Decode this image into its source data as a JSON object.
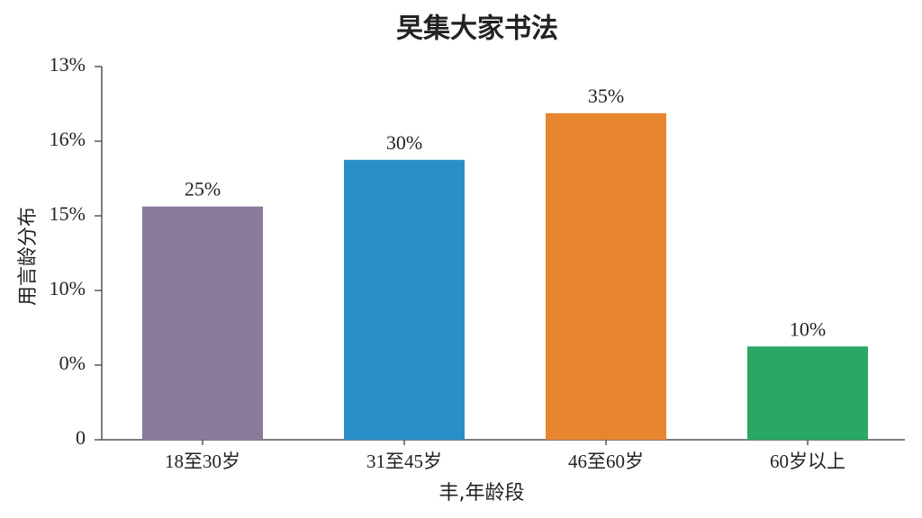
{
  "chart_data": {
    "type": "bar",
    "title": "旲集大家书法",
    "xlabel": "丰,年龄段",
    "ylabel": "用言龄分布",
    "categories": [
      "18至30岁",
      "31至45岁",
      "46至60岁",
      "60岁以上"
    ],
    "values": [
      25,
      30,
      35,
      10
    ],
    "value_labels": [
      "25%",
      "30%",
      "35%",
      "10%"
    ],
    "colors": [
      "#8a7a9b",
      "#2a8fc8",
      "#e8852f",
      "#2aa665"
    ],
    "ylim": [
      0,
      40
    ],
    "yticks": [
      0,
      {
        "value": 8,
        "label": "0%"
      },
      {
        "value": 16,
        "label": "10%"
      },
      {
        "value": 24,
        "label": "15%"
      },
      {
        "value": 32,
        "label": "16%"
      },
      {
        "value": 40,
        "label": "13%"
      }
    ]
  }
}
